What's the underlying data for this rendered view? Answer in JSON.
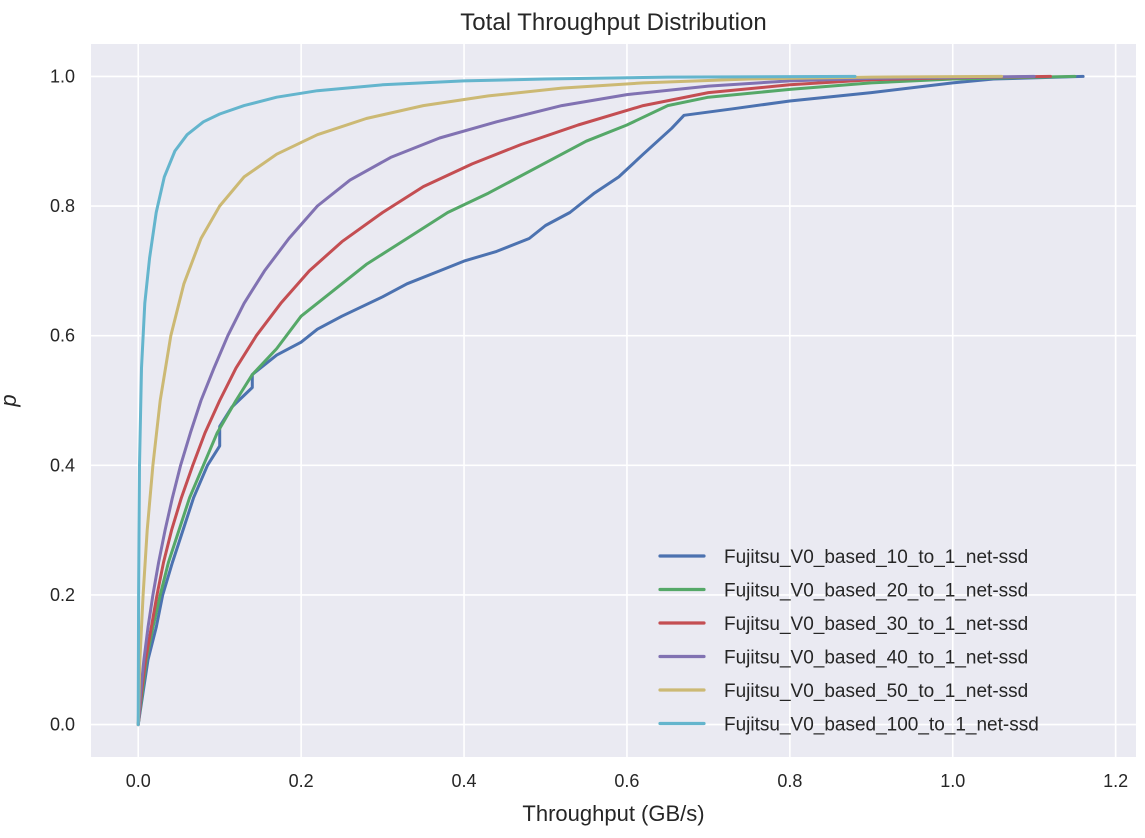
{
  "chart_data": {
    "type": "line",
    "title": "Total Throughput Distribution",
    "xlabel": "Throughput (GB/s)",
    "ylabel": "p",
    "xlim": [
      -0.058,
      1.225
    ],
    "ylim": [
      -0.05,
      1.05
    ],
    "xticks": [
      "0.0",
      "0.2",
      "0.4",
      "0.6",
      "0.8",
      "1.0",
      "1.2"
    ],
    "xtick_values": [
      0.0,
      0.2,
      0.4,
      0.6,
      0.8,
      1.0,
      1.2
    ],
    "yticks": [
      "0.0",
      "0.2",
      "0.4",
      "0.6",
      "0.8",
      "1.0"
    ],
    "ytick_values": [
      0.0,
      0.2,
      0.4,
      0.6,
      0.8,
      1.0
    ],
    "grid": true,
    "legend_position": "bottom-right",
    "background": "#eaeaf2",
    "series": [
      {
        "name": "Fujitsu_V0_based_10_to_1_net-ssd",
        "color": "#4c72b0",
        "points": [
          [
            0.0,
            0.0
          ],
          [
            0.006,
            0.05
          ],
          [
            0.012,
            0.1
          ],
          [
            0.022,
            0.15
          ],
          [
            0.03,
            0.2
          ],
          [
            0.042,
            0.25
          ],
          [
            0.055,
            0.3
          ],
          [
            0.068,
            0.35
          ],
          [
            0.085,
            0.4
          ],
          [
            0.1,
            0.43
          ],
          [
            0.1,
            0.46
          ],
          [
            0.115,
            0.49
          ],
          [
            0.14,
            0.52
          ],
          [
            0.14,
            0.54
          ],
          [
            0.17,
            0.57
          ],
          [
            0.2,
            0.59
          ],
          [
            0.22,
            0.61
          ],
          [
            0.25,
            0.63
          ],
          [
            0.3,
            0.66
          ],
          [
            0.33,
            0.68
          ],
          [
            0.37,
            0.7
          ],
          [
            0.4,
            0.715
          ],
          [
            0.44,
            0.73
          ],
          [
            0.48,
            0.75
          ],
          [
            0.5,
            0.77
          ],
          [
            0.53,
            0.79
          ],
          [
            0.56,
            0.82
          ],
          [
            0.59,
            0.845
          ],
          [
            0.62,
            0.88
          ],
          [
            0.655,
            0.92
          ],
          [
            0.67,
            0.94
          ],
          [
            0.73,
            0.95
          ],
          [
            0.8,
            0.962
          ],
          [
            0.9,
            0.975
          ],
          [
            1.0,
            0.99
          ],
          [
            1.05,
            0.996
          ],
          [
            1.16,
            1.0
          ]
        ]
      },
      {
        "name": "Fujitsu_V0_based_20_to_1_net-ssd",
        "color": "#55a868",
        "points": [
          [
            0.0,
            0.0
          ],
          [
            0.005,
            0.05
          ],
          [
            0.01,
            0.1
          ],
          [
            0.018,
            0.15
          ],
          [
            0.027,
            0.2
          ],
          [
            0.037,
            0.25
          ],
          [
            0.05,
            0.3
          ],
          [
            0.063,
            0.35
          ],
          [
            0.08,
            0.4
          ],
          [
            0.097,
            0.45
          ],
          [
            0.12,
            0.5
          ],
          [
            0.14,
            0.54
          ],
          [
            0.17,
            0.58
          ],
          [
            0.2,
            0.63
          ],
          [
            0.24,
            0.67
          ],
          [
            0.28,
            0.71
          ],
          [
            0.33,
            0.75
          ],
          [
            0.38,
            0.79
          ],
          [
            0.43,
            0.82
          ],
          [
            0.49,
            0.86
          ],
          [
            0.55,
            0.9
          ],
          [
            0.6,
            0.925
          ],
          [
            0.65,
            0.955
          ],
          [
            0.7,
            0.968
          ],
          [
            0.8,
            0.98
          ],
          [
            0.9,
            0.99
          ],
          [
            1.0,
            0.996
          ],
          [
            1.15,
            1.0
          ]
        ]
      },
      {
        "name": "Fujitsu_V0_based_30_to_1_net-ssd",
        "color": "#c44e52",
        "points": [
          [
            0.0,
            0.0
          ],
          [
            0.004,
            0.05
          ],
          [
            0.009,
            0.1
          ],
          [
            0.016,
            0.15
          ],
          [
            0.023,
            0.2
          ],
          [
            0.031,
            0.25
          ],
          [
            0.041,
            0.3
          ],
          [
            0.053,
            0.35
          ],
          [
            0.067,
            0.4
          ],
          [
            0.082,
            0.45
          ],
          [
            0.1,
            0.5
          ],
          [
            0.12,
            0.55
          ],
          [
            0.145,
            0.6
          ],
          [
            0.175,
            0.65
          ],
          [
            0.21,
            0.7
          ],
          [
            0.25,
            0.745
          ],
          [
            0.3,
            0.79
          ],
          [
            0.35,
            0.83
          ],
          [
            0.41,
            0.865
          ],
          [
            0.47,
            0.895
          ],
          [
            0.54,
            0.925
          ],
          [
            0.62,
            0.955
          ],
          [
            0.7,
            0.975
          ],
          [
            0.8,
            0.987
          ],
          [
            0.9,
            0.995
          ],
          [
            1.0,
            0.998
          ],
          [
            1.12,
            1.0
          ]
        ]
      },
      {
        "name": "Fujitsu_V0_based_40_to_1_net-ssd",
        "color": "#8172b2",
        "points": [
          [
            0.0,
            0.0
          ],
          [
            0.003,
            0.05
          ],
          [
            0.007,
            0.1
          ],
          [
            0.012,
            0.15
          ],
          [
            0.018,
            0.2
          ],
          [
            0.025,
            0.25
          ],
          [
            0.033,
            0.3
          ],
          [
            0.042,
            0.35
          ],
          [
            0.052,
            0.4
          ],
          [
            0.064,
            0.45
          ],
          [
            0.077,
            0.5
          ],
          [
            0.093,
            0.55
          ],
          [
            0.11,
            0.6
          ],
          [
            0.13,
            0.65
          ],
          [
            0.155,
            0.7
          ],
          [
            0.185,
            0.75
          ],
          [
            0.22,
            0.8
          ],
          [
            0.26,
            0.84
          ],
          [
            0.31,
            0.875
          ],
          [
            0.37,
            0.905
          ],
          [
            0.44,
            0.93
          ],
          [
            0.52,
            0.955
          ],
          [
            0.6,
            0.972
          ],
          [
            0.7,
            0.985
          ],
          [
            0.8,
            0.993
          ],
          [
            0.9,
            0.997
          ],
          [
            1.1,
            1.0
          ]
        ]
      },
      {
        "name": "Fujitsu_V0_based_50_to_1_net-ssd",
        "color": "#ccb974",
        "points": [
          [
            0.0,
            0.0
          ],
          [
            0.002,
            0.1
          ],
          [
            0.006,
            0.2
          ],
          [
            0.011,
            0.3
          ],
          [
            0.018,
            0.4
          ],
          [
            0.027,
            0.5
          ],
          [
            0.04,
            0.6
          ],
          [
            0.056,
            0.68
          ],
          [
            0.077,
            0.75
          ],
          [
            0.1,
            0.8
          ],
          [
            0.13,
            0.845
          ],
          [
            0.17,
            0.88
          ],
          [
            0.22,
            0.91
          ],
          [
            0.28,
            0.935
          ],
          [
            0.35,
            0.955
          ],
          [
            0.43,
            0.97
          ],
          [
            0.52,
            0.982
          ],
          [
            0.62,
            0.99
          ],
          [
            0.75,
            0.996
          ],
          [
            0.9,
            0.999
          ],
          [
            1.06,
            1.0
          ]
        ]
      },
      {
        "name": "Fujitsu_V0_based_100_to_1_net-ssd",
        "color": "#64b5cd",
        "points": [
          [
            0.0,
            0.0
          ],
          [
            0.0005,
            0.2
          ],
          [
            0.0015,
            0.4
          ],
          [
            0.004,
            0.55
          ],
          [
            0.008,
            0.65
          ],
          [
            0.014,
            0.72
          ],
          [
            0.022,
            0.79
          ],
          [
            0.032,
            0.845
          ],
          [
            0.045,
            0.885
          ],
          [
            0.06,
            0.91
          ],
          [
            0.08,
            0.93
          ],
          [
            0.1,
            0.942
          ],
          [
            0.13,
            0.955
          ],
          [
            0.17,
            0.968
          ],
          [
            0.22,
            0.978
          ],
          [
            0.3,
            0.987
          ],
          [
            0.4,
            0.993
          ],
          [
            0.5,
            0.996
          ],
          [
            0.65,
            0.999
          ],
          [
            0.88,
            1.0
          ]
        ]
      }
    ]
  }
}
